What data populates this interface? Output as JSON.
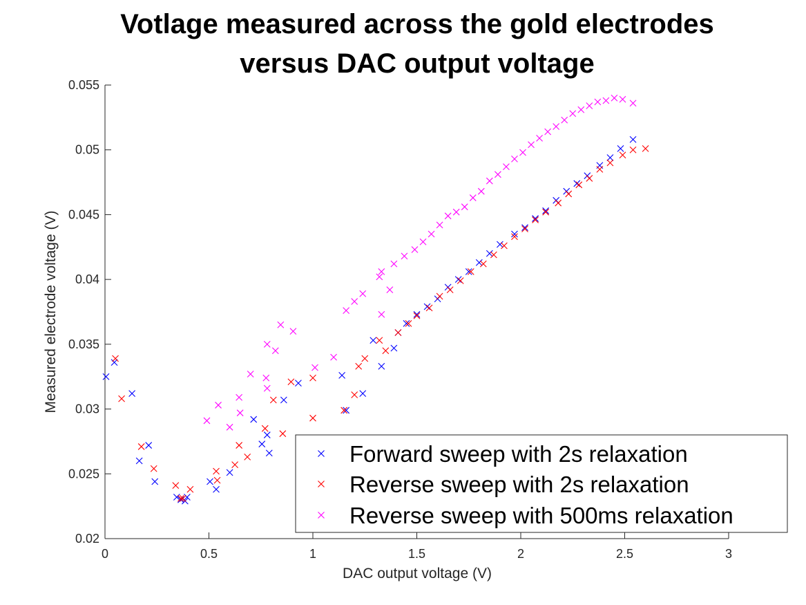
{
  "chart_data": {
    "type": "scatter",
    "title": [
      "Votlage measured across the gold electrodes",
      "versus DAC output voltage"
    ],
    "xlabel": "DAC output voltage (V)",
    "ylabel": "Measured electrode voltage (V)",
    "xlim": [
      0,
      3
    ],
    "ylim": [
      0.02,
      0.055
    ],
    "xticks": [
      0,
      0.5,
      1,
      1.5,
      2,
      2.5,
      3
    ],
    "xtick_labels": [
      "0",
      "0.5",
      "1",
      "1.5",
      "2",
      "2.5",
      "3"
    ],
    "yticks": [
      0.02,
      0.025,
      0.03,
      0.035,
      0.04,
      0.045,
      0.05,
      0.055
    ],
    "ytick_labels": [
      "0.02",
      "0.025",
      "0.03",
      "0.035",
      "0.04",
      "0.045",
      "0.05",
      "0.055"
    ],
    "grid": false,
    "legend_position": "bottom-right",
    "marker": "x",
    "series": [
      {
        "name": "Forward sweep with 2s relaxation",
        "color": "#0000ff",
        "points": [
          [
            0.005,
            0.0325
          ],
          [
            0.045,
            0.0336
          ],
          [
            0.13,
            0.0312
          ],
          [
            0.165,
            0.026
          ],
          [
            0.21,
            0.0272
          ],
          [
            0.24,
            0.0244
          ],
          [
            0.345,
            0.0232
          ],
          [
            0.365,
            0.023
          ],
          [
            0.385,
            0.0229
          ],
          [
            0.395,
            0.0232
          ],
          [
            0.505,
            0.0244
          ],
          [
            0.535,
            0.0238
          ],
          [
            0.6,
            0.0251
          ],
          [
            0.715,
            0.0292
          ],
          [
            0.755,
            0.0273
          ],
          [
            0.78,
            0.028
          ],
          [
            0.79,
            0.0266
          ],
          [
            0.86,
            0.0307
          ],
          [
            0.93,
            0.032
          ],
          [
            1.14,
            0.0326
          ],
          [
            1.16,
            0.0299
          ],
          [
            1.24,
            0.0312
          ],
          [
            1.29,
            0.0353
          ],
          [
            1.33,
            0.0333
          ],
          [
            1.39,
            0.0347
          ],
          [
            1.41,
            0.0359
          ],
          [
            1.45,
            0.0366
          ],
          [
            1.5,
            0.0373
          ],
          [
            1.55,
            0.0379
          ],
          [
            1.6,
            0.0385
          ],
          [
            1.65,
            0.0394
          ],
          [
            1.7,
            0.04
          ],
          [
            1.75,
            0.0406
          ],
          [
            1.8,
            0.0413
          ],
          [
            1.85,
            0.042
          ],
          [
            1.9,
            0.0427
          ],
          [
            1.97,
            0.0435
          ],
          [
            2.02,
            0.044
          ],
          [
            2.07,
            0.0447
          ],
          [
            2.12,
            0.0453
          ],
          [
            2.17,
            0.0461
          ],
          [
            2.22,
            0.0468
          ],
          [
            2.27,
            0.0474
          ],
          [
            2.32,
            0.048
          ],
          [
            2.38,
            0.0488
          ],
          [
            2.43,
            0.0494
          ],
          [
            2.48,
            0.0501
          ],
          [
            2.54,
            0.0508
          ]
        ]
      },
      {
        "name": "Reverse sweep with 2s relaxation",
        "color": "#ff0000",
        "points": [
          [
            0.05,
            0.0339
          ],
          [
            0.08,
            0.0308
          ],
          [
            0.175,
            0.0271
          ],
          [
            0.235,
            0.0254
          ],
          [
            0.34,
            0.0241
          ],
          [
            0.365,
            0.0231
          ],
          [
            0.375,
            0.0231
          ],
          [
            0.41,
            0.0238
          ],
          [
            0.535,
            0.0252
          ],
          [
            0.54,
            0.0245
          ],
          [
            0.625,
            0.0257
          ],
          [
            0.645,
            0.0272
          ],
          [
            0.685,
            0.0263
          ],
          [
            0.77,
            0.0285
          ],
          [
            0.81,
            0.0307
          ],
          [
            0.855,
            0.0281
          ],
          [
            0.895,
            0.0321
          ],
          [
            1.0,
            0.0293
          ],
          [
            1.0,
            0.0324
          ],
          [
            1.15,
            0.0299
          ],
          [
            1.2,
            0.0311
          ],
          [
            1.22,
            0.0333
          ],
          [
            1.25,
            0.0339
          ],
          [
            1.32,
            0.0353
          ],
          [
            1.35,
            0.0345
          ],
          [
            1.41,
            0.0359
          ],
          [
            1.46,
            0.0366
          ],
          [
            1.5,
            0.0372
          ],
          [
            1.56,
            0.0378
          ],
          [
            1.61,
            0.0387
          ],
          [
            1.66,
            0.0392
          ],
          [
            1.71,
            0.0399
          ],
          [
            1.76,
            0.0406
          ],
          [
            1.82,
            0.0412
          ],
          [
            1.87,
            0.0419
          ],
          [
            1.92,
            0.0426
          ],
          [
            1.97,
            0.0433
          ],
          [
            2.02,
            0.0439
          ],
          [
            2.07,
            0.0446
          ],
          [
            2.12,
            0.0452
          ],
          [
            2.18,
            0.0459
          ],
          [
            2.23,
            0.0466
          ],
          [
            2.28,
            0.0473
          ],
          [
            2.33,
            0.0478
          ],
          [
            2.38,
            0.0485
          ],
          [
            2.43,
            0.049
          ],
          [
            2.49,
            0.0496
          ],
          [
            2.54,
            0.05
          ],
          [
            2.6,
            0.0501
          ]
        ]
      },
      {
        "name": "Reverse sweep with 500ms relaxation",
        "color": "#ff00ff",
        "points": [
          [
            0.49,
            0.0291
          ],
          [
            0.545,
            0.0303
          ],
          [
            0.6,
            0.0286
          ],
          [
            0.645,
            0.0309
          ],
          [
            0.65,
            0.0297
          ],
          [
            0.7,
            0.0327
          ],
          [
            0.775,
            0.0324
          ],
          [
            0.78,
            0.0316
          ],
          [
            0.78,
            0.035
          ],
          [
            0.82,
            0.0345
          ],
          [
            0.845,
            0.0365
          ],
          [
            0.905,
            0.036
          ],
          [
            1.01,
            0.0332
          ],
          [
            1.1,
            0.034
          ],
          [
            1.16,
            0.0376
          ],
          [
            1.2,
            0.0383
          ],
          [
            1.24,
            0.0389
          ],
          [
            1.32,
            0.0402
          ],
          [
            1.33,
            0.0406
          ],
          [
            1.33,
            0.0373
          ],
          [
            1.37,
            0.0392
          ],
          [
            1.39,
            0.0412
          ],
          [
            1.44,
            0.0418
          ],
          [
            1.49,
            0.0423
          ],
          [
            1.53,
            0.0429
          ],
          [
            1.57,
            0.0435
          ],
          [
            1.61,
            0.0442
          ],
          [
            1.65,
            0.0449
          ],
          [
            1.69,
            0.0452
          ],
          [
            1.73,
            0.0456
          ],
          [
            1.77,
            0.0463
          ],
          [
            1.81,
            0.0468
          ],
          [
            1.85,
            0.0476
          ],
          [
            1.89,
            0.0481
          ],
          [
            1.93,
            0.0487
          ],
          [
            1.97,
            0.0493
          ],
          [
            2.01,
            0.0498
          ],
          [
            2.05,
            0.0504
          ],
          [
            2.09,
            0.0509
          ],
          [
            2.13,
            0.0514
          ],
          [
            2.17,
            0.0518
          ],
          [
            2.21,
            0.0523
          ],
          [
            2.25,
            0.0528
          ],
          [
            2.29,
            0.0531
          ],
          [
            2.33,
            0.0534
          ],
          [
            2.37,
            0.0537
          ],
          [
            2.41,
            0.0538
          ],
          [
            2.45,
            0.054
          ],
          [
            2.49,
            0.0539
          ],
          [
            2.54,
            0.0536
          ]
        ]
      }
    ]
  }
}
